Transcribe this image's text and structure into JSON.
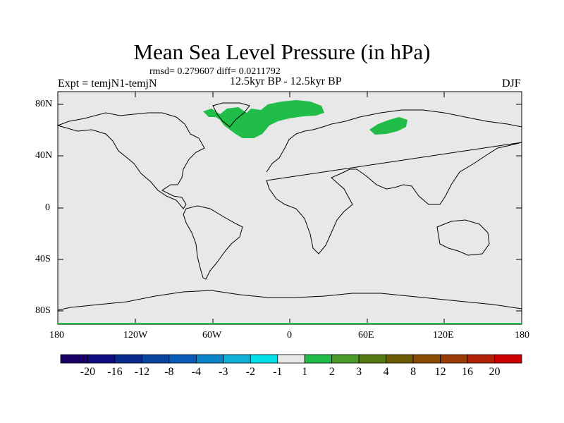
{
  "title": "Mean Sea Level Pressure (in hPa)",
  "stats": "rmsd= 0.279607 diff= 0.0211792",
  "experiment": "Expt = temjN1-temjN",
  "period": "12.5kyr BP - 12.5kyr BP",
  "season": "DJF",
  "lat_ticks": [
    "80N",
    "40N",
    "0",
    "40S",
    "80S"
  ],
  "lon_ticks": [
    "180",
    "120W",
    "60W",
    "0",
    "60E",
    "120E",
    "180"
  ],
  "colorbar": {
    "colors": [
      "#1a0066",
      "#0d0d80",
      "#0a2a8c",
      "#0a44a0",
      "#0a5cb8",
      "#0a86c8",
      "#10b0d8",
      "#00e0e8",
      "#e8e8e8",
      "#20bd48",
      "#4a9a2a",
      "#557a14",
      "#6a5a04",
      "#8a4a04",
      "#9a3a04",
      "#b02004",
      "#cc0000"
    ],
    "labels": [
      "-20",
      "-16",
      "-12",
      "-8",
      "-4",
      "-3",
      "-2",
      "-1",
      "1",
      "2",
      "3",
      "4",
      "8",
      "12",
      "16",
      "20"
    ]
  },
  "background_color": "#e8e8e8",
  "anomaly_color": "#20bd48"
}
